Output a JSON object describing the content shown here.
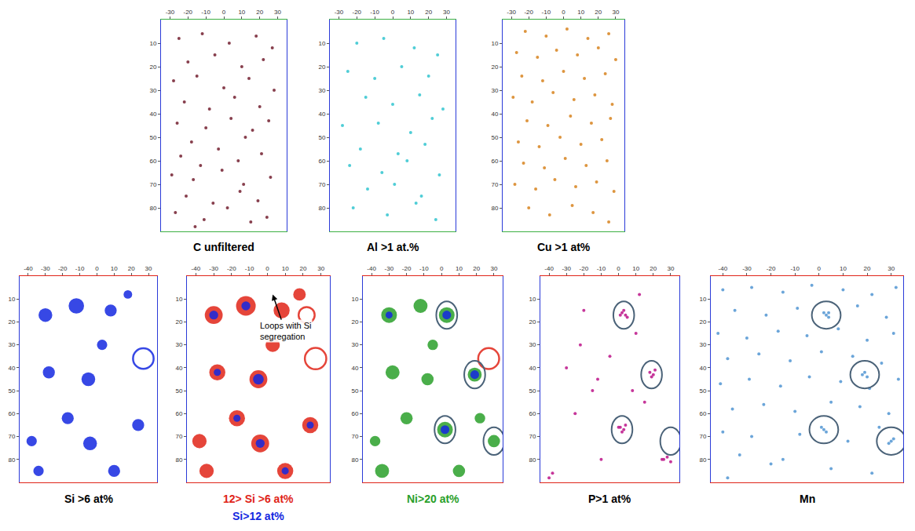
{
  "chart_data": [
    {
      "type": "scatter",
      "title": "C unfiltered",
      "xlim": [
        -35,
        35
      ],
      "ylim": [
        90,
        0
      ],
      "xticks": [
        -30,
        -20,
        -10,
        0,
        10,
        20,
        30
      ],
      "yticks": [
        10,
        20,
        30,
        40,
        50,
        60,
        70,
        80
      ],
      "grid": false,
      "series": [
        {
          "color": "#7a2a3a",
          "marker": "circle",
          "x": [
            -25,
            -12,
            3,
            18,
            27,
            -20,
            -5,
            10,
            22,
            -28,
            -15,
            0,
            14,
            28,
            -22,
            -8,
            6,
            20,
            -26,
            -10,
            4,
            16,
            25,
            -18,
            -3,
            12,
            -24,
            -13,
            8,
            21,
            -29,
            -17,
            -1,
            11,
            26,
            -21,
            -6,
            9,
            19,
            -27,
            -11,
            2,
            15,
            24,
            -16
          ],
          "y": [
            8,
            6,
            10,
            7,
            12,
            18,
            15,
            20,
            17,
            26,
            24,
            29,
            25,
            30,
            35,
            38,
            33,
            37,
            44,
            46,
            42,
            47,
            43,
            52,
            55,
            50,
            58,
            62,
            60,
            57,
            66,
            68,
            64,
            70,
            67,
            75,
            78,
            73,
            77,
            82,
            85,
            80,
            86,
            84,
            88
          ]
        }
      ]
    },
    {
      "type": "scatter",
      "title": "Al >1 at.%",
      "xlim": [
        -35,
        35
      ],
      "ylim": [
        90,
        0
      ],
      "xticks": [
        -30,
        -20,
        -10,
        0,
        10,
        20,
        30
      ],
      "yticks": [
        10,
        20,
        30,
        40,
        50,
        60,
        70,
        80
      ],
      "grid": false,
      "series": [
        {
          "color": "#3cc8d2",
          "marker": "circle",
          "x": [
            -20,
            -5,
            12,
            25,
            -25,
            -10,
            5,
            20,
            -15,
            0,
            15,
            28,
            -28,
            -8,
            10,
            22,
            -18,
            3,
            18,
            -24,
            -6,
            8,
            26,
            -14,
            1,
            16,
            -22,
            -3,
            13,
            24
          ],
          "y": [
            10,
            8,
            12,
            15,
            22,
            25,
            20,
            24,
            33,
            36,
            32,
            38,
            45,
            44,
            48,
            42,
            55,
            57,
            53,
            62,
            65,
            60,
            66,
            72,
            70,
            75,
            80,
            83,
            78,
            85
          ]
        }
      ]
    },
    {
      "type": "scatter",
      "title": "Cu >1 at%",
      "xlim": [
        -35,
        35
      ],
      "ylim": [
        90,
        0
      ],
      "xticks": [
        -30,
        -20,
        -10,
        0,
        10,
        20,
        30
      ],
      "yticks": [
        10,
        20,
        30,
        40,
        50,
        60,
        70,
        80
      ],
      "grid": false,
      "series": [
        {
          "color": "#d9892a",
          "marker": "circle",
          "x": [
            -22,
            -10,
            2,
            14,
            26,
            -27,
            -15,
            -4,
            8,
            20,
            30,
            -24,
            -12,
            0,
            12,
            24,
            -29,
            -18,
            -6,
            6,
            18,
            28,
            -21,
            -9,
            4,
            16,
            27,
            -26,
            -14,
            -2,
            10,
            22,
            -23,
            -11,
            1,
            13,
            25,
            -28,
            -16,
            -5,
            7,
            19,
            29,
            -20,
            -8,
            5,
            17,
            26
          ],
          "y": [
            5,
            7,
            4,
            8,
            6,
            14,
            16,
            13,
            15,
            12,
            17,
            24,
            26,
            22,
            25,
            23,
            33,
            35,
            31,
            34,
            32,
            36,
            43,
            45,
            41,
            44,
            42,
            52,
            54,
            50,
            53,
            51,
            61,
            63,
            59,
            62,
            60,
            70,
            72,
            68,
            71,
            69,
            73,
            80,
            83,
            79,
            82,
            86
          ]
        }
      ]
    },
    {
      "type": "scatter",
      "title": "Si >6 at%",
      "xlim": [
        -45,
        35
      ],
      "ylim": [
        90,
        0
      ],
      "xticks": [
        -40,
        -30,
        -20,
        -10,
        0,
        10,
        20,
        30
      ],
      "yticks": [
        10,
        20,
        30,
        40,
        50,
        60,
        70,
        80
      ],
      "grid": false,
      "series": [
        {
          "color": "#1428e0",
          "marker": "circle",
          "x": [
            -30,
            -12,
            8,
            -28,
            3,
            -5,
            -17,
            -38,
            -4,
            24,
            -34,
            10,
            18
          ],
          "y": [
            17,
            13,
            15,
            42,
            30,
            45,
            62,
            72,
            73,
            65,
            85,
            85,
            8
          ],
          "size": [
            8,
            9,
            7,
            7,
            6,
            8,
            7,
            6,
            8,
            7,
            6,
            7,
            5
          ]
        },
        {
          "color": "#1428e0",
          "marker": "ring",
          "x": [
            27
          ],
          "y": [
            36
          ],
          "size": [
            12
          ]
        }
      ]
    },
    {
      "type": "scatter",
      "legend": "below",
      "xlim": [
        -45,
        35
      ],
      "ylim": [
        90,
        0
      ],
      "xticks": [
        -40,
        -30,
        -20,
        -10,
        0,
        10,
        20,
        30
      ],
      "yticks": [
        10,
        20,
        30,
        40,
        50,
        60,
        70,
        80
      ],
      "grid": false,
      "series": [
        {
          "name": "12> Si >6 at%",
          "color": "#e02418",
          "marker": "circle",
          "x": [
            -30,
            -12,
            8,
            -28,
            3,
            -5,
            -17,
            -38,
            -4,
            24,
            -34,
            10,
            18
          ],
          "y": [
            17,
            13,
            15,
            42,
            30,
            45,
            62,
            72,
            73,
            65,
            85,
            85,
            8
          ],
          "size": [
            10,
            11,
            9,
            9,
            8,
            10,
            9,
            8,
            10,
            9,
            8,
            9,
            7
          ]
        },
        {
          "name": "Si>12 at%",
          "color": "#1428e0",
          "marker": "circle",
          "x": [
            -30,
            -12,
            -28,
            -5,
            -17,
            -4,
            24,
            10
          ],
          "y": [
            17,
            13,
            42,
            45,
            62,
            73,
            65,
            85
          ],
          "size": [
            5,
            5,
            4,
            6,
            4,
            5,
            4,
            4
          ]
        },
        {
          "color": "#e02418",
          "marker": "ring",
          "x": [
            27,
            22
          ],
          "y": [
            36,
            17
          ],
          "size": [
            12,
            9
          ]
        }
      ],
      "annotations": [
        {
          "text": "Loops with Si segregation",
          "x": 3,
          "y": 8,
          "text_x": 10,
          "text_y": 24
        }
      ]
    },
    {
      "type": "scatter",
      "legend": "below",
      "xlim": [
        -45,
        35
      ],
      "ylim": [
        90,
        0
      ],
      "xticks": [
        -40,
        -30,
        -20,
        -10,
        0,
        10,
        20,
        30
      ],
      "yticks": [
        10,
        20,
        30,
        40,
        50,
        60,
        70,
        80
      ],
      "grid": false,
      "series": [
        {
          "name": "Ni>20 at%",
          "color": "#2aa02a",
          "marker": "circle",
          "x": [
            -30,
            -12,
            3,
            -28,
            19,
            -8,
            -20,
            2,
            -38,
            30,
            -34,
            10,
            22,
            -5
          ],
          "y": [
            17,
            13,
            17,
            42,
            43,
            45,
            62,
            67,
            72,
            72,
            85,
            85,
            62,
            30
          ],
          "size": [
            9,
            8,
            9,
            8,
            8,
            7,
            7,
            9,
            6,
            7,
            8,
            7,
            6,
            6
          ]
        },
        {
          "color": "#1428e0",
          "marker": "circle",
          "x": [
            3,
            19,
            2,
            -30
          ],
          "y": [
            17,
            43,
            67,
            17
          ],
          "size": [
            5,
            5,
            5,
            4
          ]
        },
        {
          "color": "#e02418",
          "marker": "ring",
          "x": [
            27
          ],
          "y": [
            36
          ],
          "size": [
            12
          ]
        }
      ],
      "circles": [
        [
          3,
          17
        ],
        [
          19,
          43
        ],
        [
          2,
          67
        ],
        [
          30,
          72
        ]
      ]
    },
    {
      "type": "scatter",
      "title": "P>1 at%",
      "xlim": [
        -45,
        35
      ],
      "ylim": [
        90,
        0
      ],
      "xticks": [
        -40,
        -30,
        -20,
        -10,
        0,
        10,
        20,
        30
      ],
      "yticks": [
        10,
        20,
        30,
        40,
        50,
        60,
        70,
        80
      ],
      "grid": false,
      "series": [
        {
          "color": "#c0208f",
          "marker": "circle",
          "x": [
            2,
            4,
            3,
            5,
            1,
            18,
            20,
            19,
            21,
            1,
            3,
            2,
            0,
            4,
            -20,
            -22,
            -15,
            -10,
            10,
            15,
            25,
            -30,
            -38,
            28,
            30,
            26,
            -5,
            -25,
            12,
            -40,
            8,
            -12
          ],
          "y": [
            16,
            17,
            15,
            18,
            17,
            42,
            43,
            44,
            41,
            66,
            67,
            68,
            66,
            65,
            15,
            30,
            50,
            80,
            25,
            55,
            80,
            40,
            86,
            79,
            81,
            80,
            35,
            60,
            8,
            88,
            50,
            45
          ]
        }
      ],
      "circles": [
        [
          3,
          17
        ],
        [
          19,
          43
        ],
        [
          2,
          67
        ],
        [
          30,
          72
        ]
      ]
    },
    {
      "type": "scatter",
      "title": "Mn",
      "xlim": [
        -45,
        35
      ],
      "ylim": [
        90,
        0
      ],
      "xticks": [
        -40,
        -30,
        -20,
        -10,
        0,
        10,
        20,
        30
      ],
      "yticks": [
        10,
        20,
        30,
        40,
        50,
        60,
        70,
        80
      ],
      "grid": false,
      "series": [
        {
          "color": "#5b9bd5",
          "marker": "circle",
          "x": [
            -40,
            -28,
            -15,
            -3,
            10,
            22,
            32,
            -35,
            -22,
            -9,
            4,
            16,
            28,
            -42,
            -30,
            -17,
            -5,
            8,
            20,
            31,
            -38,
            -25,
            -12,
            1,
            14,
            26,
            -41,
            -29,
            -16,
            -4,
            9,
            21,
            33,
            -36,
            -23,
            -10,
            5,
            17,
            29,
            -20,
            -40,
            -28,
            -8,
            12,
            25,
            -33,
            -15,
            5,
            22,
            -38,
            2,
            4,
            3,
            19,
            20,
            18,
            1,
            3,
            2,
            31,
            29,
            30
          ],
          "y": [
            6,
            5,
            7,
            4,
            6,
            8,
            5,
            15,
            17,
            14,
            16,
            13,
            18,
            25,
            27,
            24,
            26,
            23,
            28,
            25,
            36,
            34,
            37,
            33,
            35,
            38,
            47,
            45,
            48,
            44,
            46,
            49,
            45,
            58,
            56,
            59,
            55,
            57,
            60,
            82,
            68,
            70,
            69,
            72,
            66,
            78,
            80,
            84,
            86,
            88,
            16,
            18,
            17,
            42,
            44,
            43,
            66,
            68,
            67,
            71,
            73,
            72
          ]
        }
      ],
      "circles": [
        [
          3,
          17
        ],
        [
          19,
          43
        ],
        [
          2,
          67
        ],
        [
          30,
          72
        ]
      ]
    }
  ]
}
